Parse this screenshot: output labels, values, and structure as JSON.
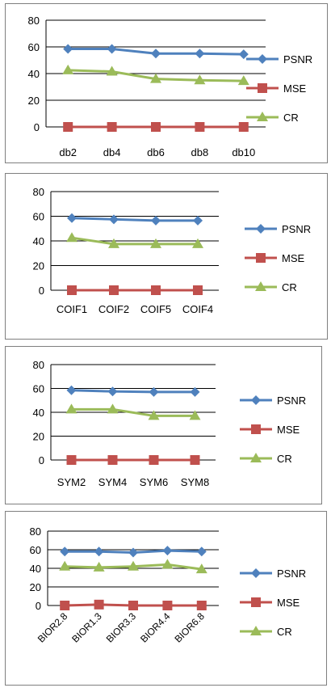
{
  "colors": {
    "PSNR": "#4f81bd",
    "MSE": "#c0504d",
    "CR": "#9bbb59",
    "axis": "#000000",
    "grid": "#000000"
  },
  "chart_data": [
    {
      "type": "line",
      "categories": [
        "db2",
        "db4",
        "db6",
        "db8",
        "db10"
      ],
      "ylim": [
        0,
        80
      ],
      "yticks": [
        0,
        20,
        40,
        60,
        80
      ],
      "legend_position": "right",
      "series": [
        {
          "name": "PSNR",
          "marker": "diamond",
          "values": [
            58.5,
            58.5,
            55,
            55,
            54.5
          ]
        },
        {
          "name": "MSE",
          "marker": "square",
          "values": [
            0,
            0,
            0,
            0,
            0
          ]
        },
        {
          "name": "CR",
          "marker": "triangle",
          "values": [
            42.5,
            41.5,
            36,
            35,
            34.5
          ]
        }
      ]
    },
    {
      "type": "line",
      "categories": [
        "COIF1",
        "COIF2",
        "COIF5",
        "COIF4"
      ],
      "ylim": [
        0,
        80
      ],
      "yticks": [
        0,
        20,
        40,
        60,
        80
      ],
      "legend_position": "right",
      "series": [
        {
          "name": "PSNR",
          "marker": "diamond",
          "values": [
            58.5,
            57.5,
            56.5,
            56.5
          ]
        },
        {
          "name": "MSE",
          "marker": "square",
          "values": [
            0,
            0,
            0,
            0
          ]
        },
        {
          "name": "CR",
          "marker": "triangle",
          "values": [
            42.5,
            37.5,
            37.5,
            37.5
          ]
        }
      ]
    },
    {
      "type": "line",
      "categories": [
        "SYM2",
        "SYM4",
        "SYM6",
        "SYM8"
      ],
      "ylim": [
        0,
        80
      ],
      "yticks": [
        0,
        20,
        40,
        60,
        80
      ],
      "legend_position": "right",
      "series": [
        {
          "name": "PSNR",
          "marker": "diamond",
          "values": [
            58.5,
            57.5,
            57,
            57
          ]
        },
        {
          "name": "MSE",
          "marker": "square",
          "values": [
            0,
            0,
            0,
            0
          ]
        },
        {
          "name": "CR",
          "marker": "triangle",
          "values": [
            42.5,
            42.5,
            37,
            37
          ]
        }
      ]
    },
    {
      "type": "line",
      "categories": [
        "BIOR2.8",
        "BIOR1.3",
        "BIOR3.3",
        "BIOR4.4",
        "BIOR6.8"
      ],
      "ylim": [
        0,
        80
      ],
      "yticks": [
        0,
        20,
        40,
        60,
        80
      ],
      "legend_position": "right",
      "rotated_xlabels": true,
      "series": [
        {
          "name": "PSNR",
          "marker": "diamond",
          "values": [
            58,
            58,
            57,
            59,
            58
          ]
        },
        {
          "name": "MSE",
          "marker": "square",
          "values": [
            0,
            1,
            0,
            0,
            0
          ]
        },
        {
          "name": "CR",
          "marker": "triangle",
          "values": [
            42,
            41,
            42,
            44,
            39
          ]
        }
      ]
    }
  ]
}
